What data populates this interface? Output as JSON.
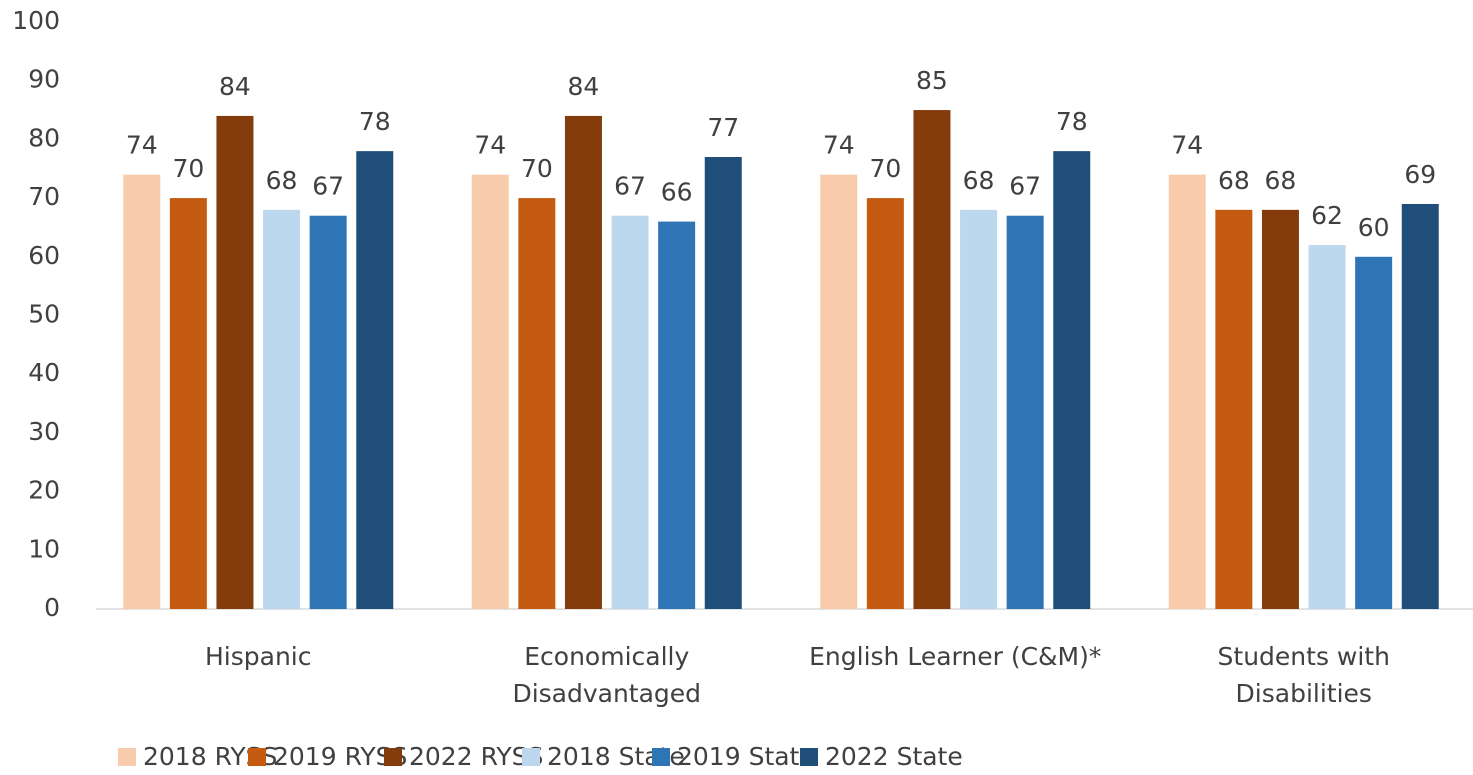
{
  "chart_data": {
    "type": "bar",
    "categories": [
      "Hispanic",
      "Economically\nDisadvantaged",
      "English Learner (C&M)*",
      "Students with\nDisabilities"
    ],
    "series": [
      {
        "name": "2018 RYSS",
        "color": "#f8cbad",
        "values": [
          74,
          74,
          74,
          74
        ]
      },
      {
        "name": "2019 RYSS",
        "color": "#c55a11",
        "values": [
          70,
          70,
          70,
          68
        ]
      },
      {
        "name": "2022 RYSS",
        "color": "#843c0c",
        "values": [
          84,
          84,
          85,
          68
        ]
      },
      {
        "name": "2018 State",
        "color": "#bdd7ee",
        "values": [
          68,
          67,
          68,
          62
        ]
      },
      {
        "name": "2019 State",
        "color": "#2e75b6",
        "values": [
          67,
          66,
          67,
          60
        ]
      },
      {
        "name": "2022 State",
        "color": "#1f4e79",
        "values": [
          78,
          77,
          78,
          69
        ]
      }
    ],
    "ylim": [
      0,
      100
    ],
    "yticks": [
      0,
      10,
      20,
      30,
      40,
      50,
      60,
      70,
      80,
      90,
      100
    ],
    "grid": false,
    "legend": "bottom"
  }
}
